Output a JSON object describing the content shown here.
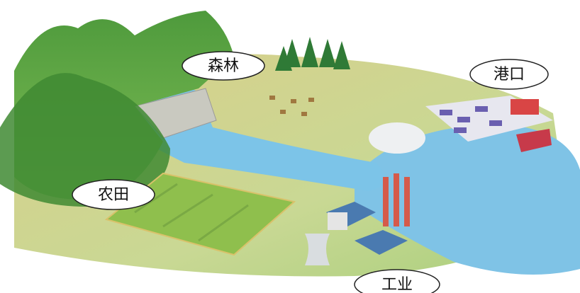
{
  "labels": [
    "森林",
    "港口",
    "农田",
    "工业"
  ]
}
